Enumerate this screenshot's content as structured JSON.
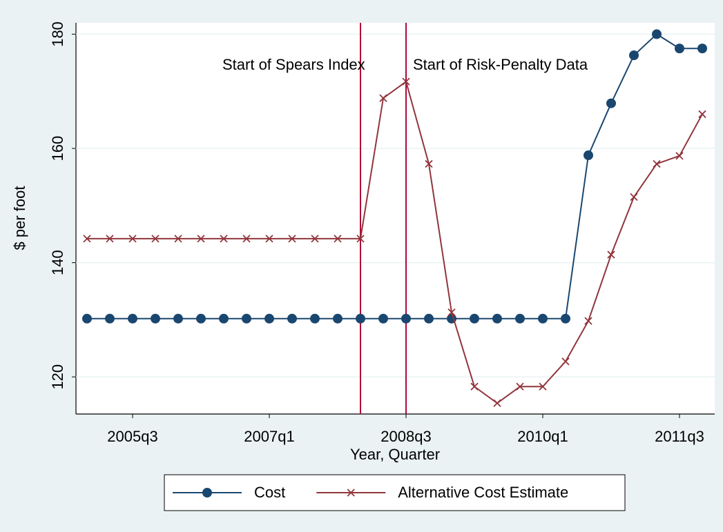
{
  "chart_data": {
    "type": "line",
    "x_label": "Year, Quarter",
    "y_label": "$ per foot",
    "categories": [
      null,
      null,
      "2005q3",
      null,
      null,
      null,
      null,
      null,
      "2007q1",
      null,
      null,
      null,
      null,
      null,
      "2008q3",
      null,
      null,
      null,
      null,
      null,
      "2010q1",
      null,
      null,
      null,
      null,
      null,
      "2011q3",
      null
    ],
    "series": [
      {
        "name": "Cost",
        "color": "#1a476f",
        "marker": "circle",
        "values": [
          130.2,
          130.2,
          130.2,
          130.2,
          130.2,
          130.2,
          130.2,
          130.2,
          130.2,
          130.2,
          130.2,
          130.2,
          130.2,
          130.2,
          130.2,
          130.2,
          130.2,
          130.2,
          130.2,
          130.2,
          130.2,
          130.2,
          158.8,
          167.9,
          176.3,
          180,
          177.5,
          177.5
        ]
      },
      {
        "name": "Alternative Cost Estimate",
        "color": "#90353b",
        "marker": "x",
        "values": [
          144.2,
          144.2,
          144.2,
          144.2,
          144.2,
          144.2,
          144.2,
          144.2,
          144.2,
          144.2,
          144.2,
          144.2,
          144.2,
          168.8,
          171.7,
          157.3,
          131.3,
          118.3,
          115.4,
          118.3,
          118.3,
          122.7,
          129.8,
          141.4,
          151.5,
          157.3,
          158.7,
          166
        ]
      }
    ],
    "vlines": [
      {
        "x": 12,
        "text": "Start of Spears Index",
        "color": "#b0063a"
      },
      {
        "x": 14,
        "text": "Start of Risk-Penalty Data",
        "color": "#b0063a"
      }
    ],
    "ylim": [
      113.5,
      182
    ],
    "yticks": [
      120,
      140,
      160,
      180
    ],
    "grid": true,
    "legend": "bottom"
  }
}
